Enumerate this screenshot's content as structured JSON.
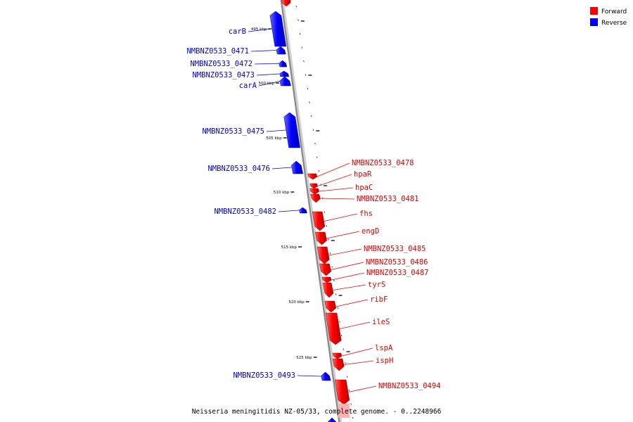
{
  "legend": [
    {
      "label": "Forward",
      "color": "#ff0000"
    },
    {
      "label": "Reverse",
      "color": "#0000ff"
    }
  ],
  "caption": "Neisseria meningitidis NZ-05/33, complete genome. - 0..2248966",
  "colors": {
    "forward": "#ff0000",
    "reverse": "#0000ff",
    "backbone": "#888888"
  },
  "ticks": [
    "495 kbp",
    "500 kbp",
    "505 kbp",
    "510 kbp",
    "515 kbp",
    "520 kbp",
    "525 kbp"
  ],
  "genes": [
    {
      "name": "carB",
      "strand": "reverse"
    },
    {
      "name": "NMBNZ0533_0471",
      "strand": "reverse"
    },
    {
      "name": "NMBNZ0533_0472",
      "strand": "reverse"
    },
    {
      "name": "NMBNZ0533_0473",
      "strand": "reverse"
    },
    {
      "name": "carA",
      "strand": "reverse"
    },
    {
      "name": "NMBNZ0533_0475",
      "strand": "reverse"
    },
    {
      "name": "NMBNZ0533_0476",
      "strand": "reverse"
    },
    {
      "name": "NMBNZ0533_0478",
      "strand": "forward"
    },
    {
      "name": "hpaR",
      "strand": "forward"
    },
    {
      "name": "hpaC",
      "strand": "forward"
    },
    {
      "name": "NMBNZ0533_0481",
      "strand": "forward"
    },
    {
      "name": "NMBNZ0533_0482",
      "strand": "reverse"
    },
    {
      "name": "fhs",
      "strand": "forward"
    },
    {
      "name": "engD",
      "strand": "forward"
    },
    {
      "name": "NMBNZ0533_0485",
      "strand": "forward"
    },
    {
      "name": "NMBNZ0533_0486",
      "strand": "forward"
    },
    {
      "name": "NMBNZ0533_0487",
      "strand": "forward"
    },
    {
      "name": "tyrS",
      "strand": "forward"
    },
    {
      "name": "ribF",
      "strand": "forward"
    },
    {
      "name": "ileS",
      "strand": "forward"
    },
    {
      "name": "lspA",
      "strand": "forward"
    },
    {
      "name": "ispH",
      "strand": "forward"
    },
    {
      "name": "NMBNZ0533_0493",
      "strand": "reverse"
    },
    {
      "name": "NMBNZ0533_0494",
      "strand": "forward"
    }
  ]
}
